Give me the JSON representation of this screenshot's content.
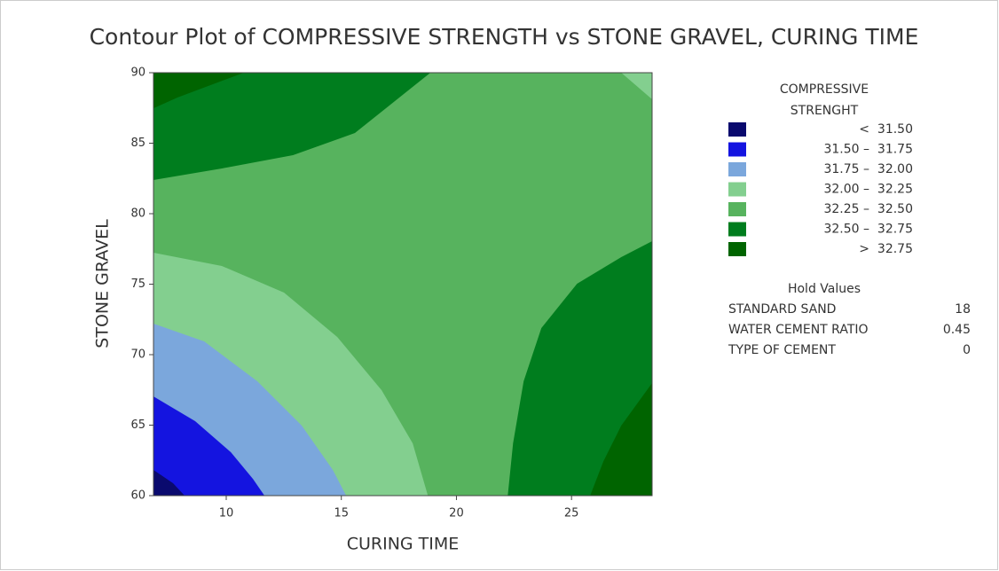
{
  "chart_data": {
    "type": "contour",
    "title": "Contour Plot of COMPRESSIVE STRENGTH vs STONE GRAVEL, CURING TIME",
    "xlabel": "CURING TIME",
    "ylabel": "STONE GRAVEL",
    "xlim": [
      6.84,
      28.5
    ],
    "xticks": [
      10,
      15,
      20,
      25
    ],
    "ylim": [
      60,
      90
    ],
    "yticks": [
      60,
      65,
      70,
      75,
      80,
      85,
      90
    ],
    "legend_title": [
      "COMPRESSIVE",
      "STRENGHT"
    ],
    "levels": [
      {
        "label": "<  31.50",
        "color": "#0a0a6e",
        "regions": [
          {
            "x": [
              6.84,
              7.69,
              8.19,
              6.84
            ],
            "y": [
              61.82,
              60.88,
              60,
              60
            ]
          }
        ]
      },
      {
        "label": "31.50 –  31.75",
        "color": "#1414e0",
        "regions": [
          {
            "x": [
              6.84,
              8.65,
              10.2,
              11.16,
              11.66,
              6.84
            ],
            "y": [
              67.04,
              65.28,
              63.08,
              61.19,
              60,
              60
            ]
          }
        ]
      },
      {
        "label": "31.75 –  32.00",
        "color": "#7ba7dc",
        "regions": [
          {
            "x": [
              6.84,
              9.04,
              11.35,
              13.28,
              14.63,
              15.21,
              6.84
            ],
            "y": [
              72.2,
              70.94,
              68.11,
              64.97,
              61.82,
              60,
              60
            ]
          }
        ]
      },
      {
        "label": "32.00 –  32.25",
        "color": "#83cf8f",
        "regions": [
          {
            "x": [
              6.84,
              9.81,
              12.51,
              14.82,
              16.75,
              18.1,
              18.76,
              6.84
            ],
            "y": [
              77.23,
              76.29,
              74.4,
              71.26,
              67.48,
              63.71,
              60,
              60
            ]
          },
          {
            "x": [
              27.16,
              28.5,
              28.5
            ],
            "y": [
              90,
              88.11,
              90
            ]
          }
        ]
      },
      {
        "label": "32.25 –  32.50",
        "color": "#57b35e",
        "regions": [
          {
            "x": [
              6.84,
              28.5,
              28.5,
              6.84
            ],
            "y": [
              60,
              60,
              90,
              90
            ]
          }
        ]
      },
      {
        "label": "32.50 –  32.75",
        "color": "#007d1e",
        "regions": [
          {
            "x": [
              6.84,
              9.81,
              12.9,
              15.59,
              17.52,
              18.87,
              6.84
            ],
            "y": [
              82.39,
              83.21,
              84.15,
              85.72,
              88.24,
              90,
              90
            ]
          },
          {
            "x": [
              22.23,
              22.46,
              22.92,
              23.69,
              25.24,
              27.16,
              28.5,
              28.5
            ],
            "y": [
              60,
              63.71,
              68.11,
              71.89,
              75.03,
              76.92,
              78.05,
              60
            ]
          }
        ]
      },
      {
        "label": ">  32.75",
        "color": "#006400",
        "regions": [
          {
            "x": [
              6.84,
              7.88,
              9.42,
              10.77,
              6.84
            ],
            "y": [
              87.48,
              88.24,
              89.18,
              90,
              90
            ]
          },
          {
            "x": [
              25.81,
              26.39,
              27.16,
              28.5,
              28.5
            ],
            "y": [
              60,
              62.45,
              64.97,
              67.99,
              60
            ]
          }
        ]
      }
    ],
    "hold_title": "Hold Values",
    "hold_values": [
      {
        "name": "STANDARD SAND",
        "value": 18
      },
      {
        "name": "WATER CEMENT RATIO",
        "value": 0.45
      },
      {
        "name": "TYPE OF CEMENT",
        "value": 0
      }
    ]
  }
}
